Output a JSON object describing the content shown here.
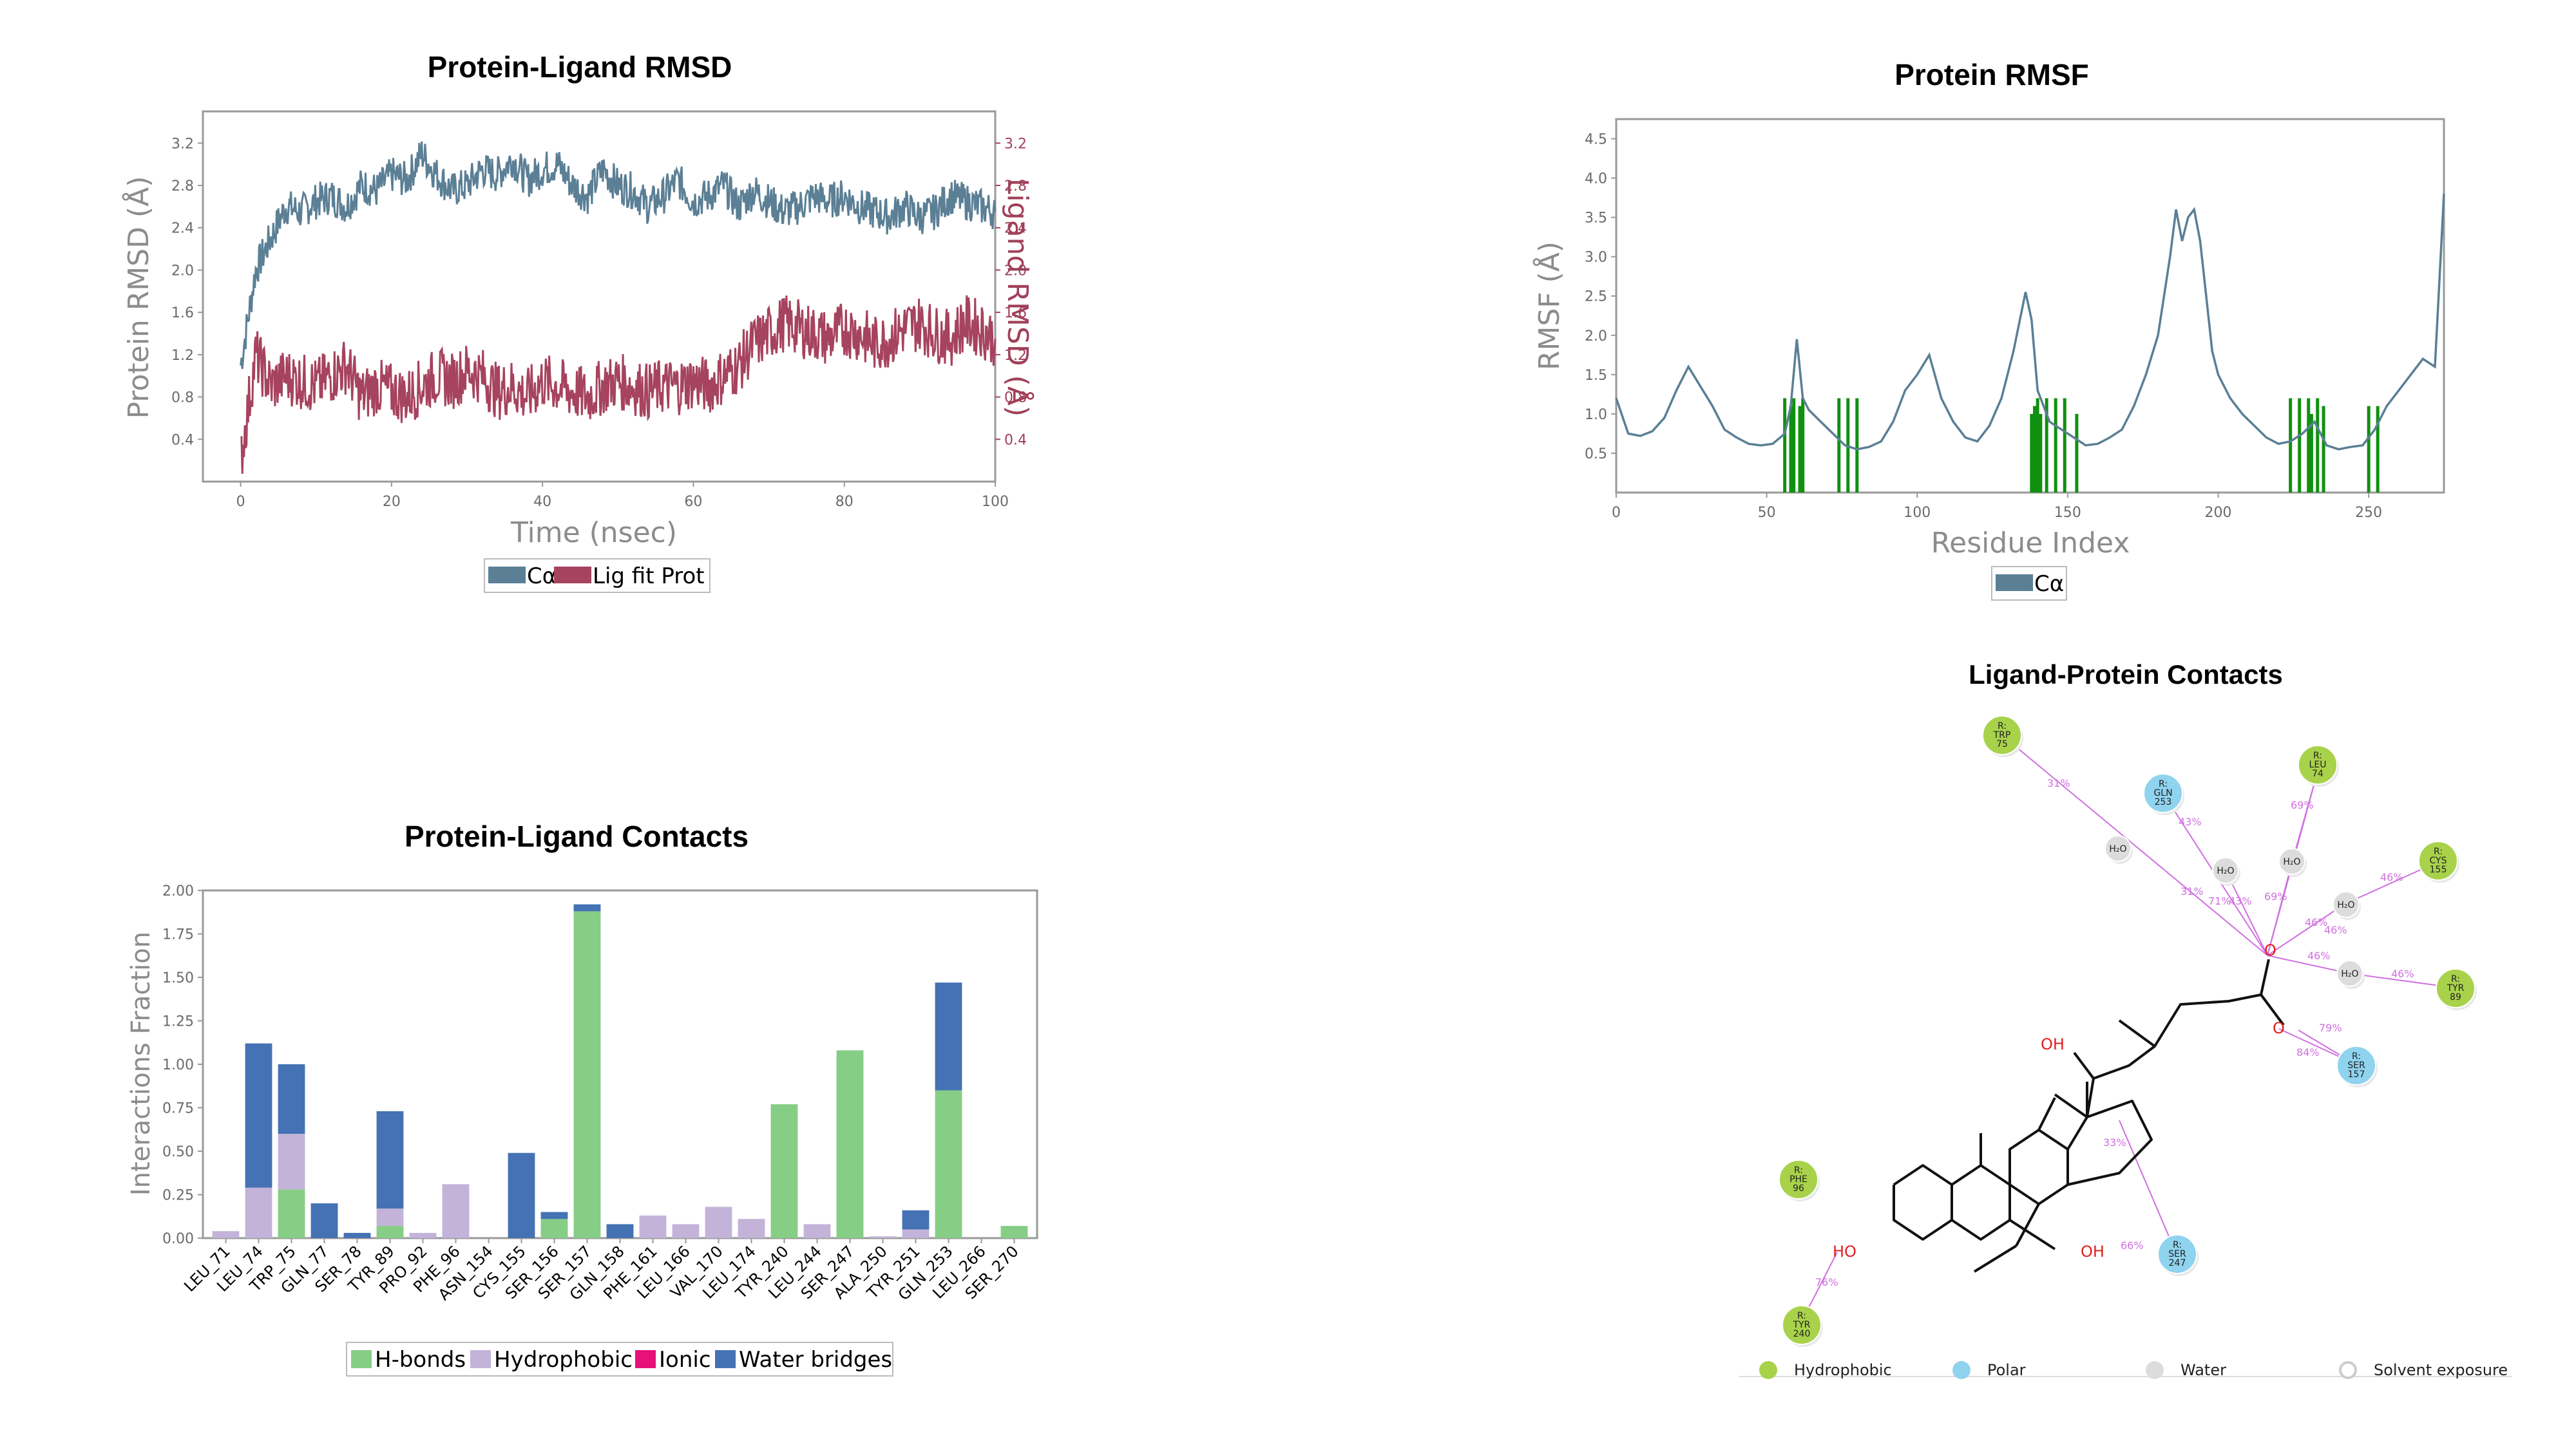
{
  "colors": {
    "protein": "#5b7f95",
    "ligand": "#a6435f",
    "hbond": "#86cd86",
    "hydrophobic": "#c3b3d9",
    "ionic": "#e8107a",
    "water": "#4472b4",
    "green": "#109010",
    "hydrophobic_node": "#a8d24a",
    "polar_node": "#8fd3ef",
    "water_node": "#dcdcdc",
    "contact_arrow": "#d070e0"
  },
  "chart_data": [
    {
      "type": "line",
      "title": "Protein-Ligand RMSD",
      "xlabel": "Time (nsec)",
      "ylabel": "Protein RMSD (Å)",
      "ylabel_right": "Ligand RMSD (Å)",
      "xlim": [
        -5,
        100
      ],
      "ylim": [
        0,
        3.5
      ],
      "x_ticks": [
        0,
        20,
        40,
        60,
        80,
        100
      ],
      "y_ticks": [
        0.4,
        0.8,
        1.2,
        1.6,
        2.0,
        2.4,
        2.8,
        3.2
      ],
      "legend": [
        "Cα",
        "Lig fit Prot"
      ],
      "series": [
        {
          "name": "Cα",
          "x": [
            0,
            2,
            4,
            6,
            8,
            10,
            12,
            14,
            16,
            18,
            20,
            22,
            24,
            26,
            28,
            30,
            32,
            34,
            36,
            38,
            40,
            42,
            44,
            46,
            48,
            50,
            52,
            54,
            56,
            58,
            60,
            62,
            64,
            66,
            68,
            70,
            72,
            74,
            76,
            78,
            80,
            82,
            84,
            86,
            88,
            90,
            92,
            94,
            96,
            98,
            100
          ],
          "values": [
            1.1,
            2.0,
            2.3,
            2.6,
            2.55,
            2.65,
            2.7,
            2.6,
            2.8,
            2.75,
            2.9,
            2.85,
            3.1,
            2.9,
            2.75,
            2.8,
            2.95,
            2.9,
            3.05,
            2.85,
            2.95,
            3.0,
            2.8,
            2.7,
            2.95,
            2.8,
            2.75,
            2.6,
            2.7,
            2.85,
            2.65,
            2.7,
            2.8,
            2.6,
            2.75,
            2.65,
            2.55,
            2.6,
            2.7,
            2.65,
            2.7,
            2.6,
            2.55,
            2.5,
            2.6,
            2.5,
            2.55,
            2.7,
            2.65,
            2.6,
            2.55
          ]
        },
        {
          "name": "Lig fit Prot",
          "x": [
            0,
            2,
            4,
            6,
            8,
            10,
            12,
            14,
            16,
            18,
            20,
            22,
            24,
            26,
            28,
            30,
            32,
            34,
            36,
            38,
            40,
            42,
            44,
            46,
            48,
            50,
            52,
            54,
            56,
            58,
            60,
            62,
            64,
            66,
            68,
            70,
            72,
            74,
            76,
            78,
            80,
            82,
            84,
            86,
            88,
            90,
            92,
            94,
            96,
            98,
            100
          ],
          "values": [
            0.2,
            1.2,
            0.9,
            1.0,
            0.95,
            0.9,
            1.0,
            1.1,
            0.8,
            0.9,
            0.85,
            0.8,
            0.9,
            1.0,
            0.95,
            1.05,
            1.0,
            0.85,
            0.9,
            0.8,
            0.95,
            0.9,
            0.85,
            0.8,
            0.9,
            0.95,
            0.9,
            0.85,
            0.9,
            0.9,
            0.95,
            0.9,
            1.0,
            1.1,
            1.3,
            1.4,
            1.5,
            1.45,
            1.4,
            1.35,
            1.45,
            1.4,
            1.3,
            1.35,
            1.45,
            1.5,
            1.4,
            1.35,
            1.5,
            1.45,
            1.35
          ]
        }
      ]
    },
    {
      "type": "line",
      "title": "Protein RMSF",
      "xlabel": "Residue Index",
      "ylabel": "RMSF (Å)",
      "xlim": [
        0,
        275
      ],
      "ylim": [
        0,
        4.75
      ],
      "x_ticks": [
        0,
        50,
        100,
        150,
        200,
        250
      ],
      "y_ticks": [
        0.5,
        1.0,
        1.5,
        2.0,
        2.5,
        3.0,
        3.5,
        4.0,
        4.5
      ],
      "legend": [
        "Cα"
      ],
      "series": [
        {
          "name": "Cα",
          "x": [
            0,
            4,
            8,
            12,
            16,
            20,
            24,
            28,
            32,
            36,
            40,
            44,
            48,
            52,
            56,
            58,
            60,
            62,
            64,
            68,
            72,
            76,
            80,
            84,
            88,
            92,
            96,
            100,
            104,
            108,
            112,
            116,
            120,
            124,
            128,
            132,
            136,
            138,
            140,
            142,
            144,
            148,
            152,
            156,
            160,
            164,
            168,
            172,
            176,
            180,
            184,
            186,
            188,
            190,
            192,
            194,
            196,
            198,
            200,
            204,
            208,
            212,
            216,
            220,
            224,
            228,
            232,
            236,
            240,
            244,
            248,
            252,
            256,
            260,
            264,
            268,
            272,
            275
          ],
          "values": [
            1.2,
            0.75,
            0.72,
            0.78,
            0.95,
            1.3,
            1.6,
            1.35,
            1.1,
            0.8,
            0.7,
            0.62,
            0.6,
            0.62,
            0.75,
            1.1,
            1.95,
            1.2,
            1.05,
            0.9,
            0.75,
            0.6,
            0.55,
            0.58,
            0.65,
            0.9,
            1.3,
            1.5,
            1.75,
            1.2,
            0.9,
            0.7,
            0.65,
            0.85,
            1.2,
            1.8,
            2.55,
            2.2,
            1.3,
            1.1,
            0.9,
            0.8,
            0.7,
            0.6,
            0.62,
            0.7,
            0.8,
            1.1,
            1.5,
            2.0,
            3.0,
            3.6,
            3.2,
            3.5,
            3.6,
            3.2,
            2.5,
            1.8,
            1.5,
            1.2,
            1.0,
            0.85,
            0.7,
            0.62,
            0.65,
            0.75,
            0.9,
            0.6,
            0.55,
            0.58,
            0.6,
            0.8,
            1.1,
            1.3,
            1.5,
            1.7,
            1.6,
            3.8
          ]
        }
      ],
      "ligand_contact_residues": [
        56,
        58,
        59,
        61,
        62,
        74,
        77,
        80,
        138,
        139,
        140,
        141,
        143,
        146,
        149,
        153,
        224,
        227,
        230,
        231,
        233,
        235,
        250,
        253
      ]
    },
    {
      "type": "bar",
      "title": "Protein-Ligand Contacts",
      "ylabel": "Interactions Fraction",
      "ylim": [
        0,
        2.0
      ],
      "y_ticks": [
        "0.00",
        "0.25",
        "0.50",
        "0.75",
        "1.00",
        "1.25",
        "1.50",
        "1.75",
        "2.00"
      ],
      "categories": [
        "LEU_71",
        "LEU_74",
        "TRP_75",
        "GLN_77",
        "SER_78",
        "TYR_89",
        "PRO_92",
        "PHE_96",
        "ASN_154",
        "CYS_155",
        "SER_156",
        "SER_157",
        "GLN_158",
        "PHE_161",
        "LEU_166",
        "VAL_170",
        "LEU_174",
        "TYR_240",
        "LEU_244",
        "SER_247",
        "ALA_250",
        "TYR_251",
        "GLN_253",
        "LEU_266",
        "SER_270"
      ],
      "series": [
        {
          "name": "H-bonds",
          "values": [
            0,
            0,
            0.28,
            0,
            0,
            0.07,
            0,
            0,
            0,
            0,
            0.11,
            1.88,
            0,
            0,
            0,
            0,
            0,
            0.77,
            0,
            1.08,
            0,
            0,
            0.85,
            0,
            0.07
          ]
        },
        {
          "name": "Hydrophobic",
          "values": [
            0.04,
            0.29,
            0.32,
            0,
            0,
            0.1,
            0.03,
            0.31,
            0,
            0,
            0,
            0,
            0,
            0.13,
            0.08,
            0.18,
            0.11,
            0,
            0.08,
            0,
            0.01,
            0.05,
            0,
            0,
            0
          ]
        },
        {
          "name": "Ionic",
          "values": [
            0,
            0,
            0,
            0,
            0,
            0,
            0,
            0,
            0,
            0,
            0,
            0,
            0,
            0,
            0,
            0,
            0,
            0,
            0,
            0,
            0,
            0,
            0,
            0,
            0
          ]
        },
        {
          "name": "Water bridges",
          "values": [
            0,
            0.83,
            0.4,
            0.2,
            0.03,
            0.56,
            0,
            0,
            0,
            0.49,
            0.04,
            0.04,
            0.08,
            0,
            0,
            0,
            0,
            0,
            0,
            0,
            0,
            0.11,
            0.62,
            0,
            0
          ]
        }
      ],
      "legend": [
        "H-bonds",
        "Hydrophobic",
        "Ionic",
        "Water bridges"
      ]
    }
  ],
  "contacts_diagram": {
    "title": "Ligand-Protein Contacts",
    "nodes": [
      {
        "id": "trp75",
        "label1": "R:",
        "label2": "TRP",
        "label3": "75",
        "kind": "hydrophobic"
      },
      {
        "id": "gln253",
        "label1": "R:",
        "label2": "GLN",
        "label3": "253",
        "kind": "polar"
      },
      {
        "id": "leu74",
        "label1": "R:",
        "label2": "LEU",
        "label3": "74",
        "kind": "hydrophobic"
      },
      {
        "id": "cys155",
        "label1": "R:",
        "label2": "CYS",
        "label3": "155",
        "kind": "hydrophobic"
      },
      {
        "id": "tyr89",
        "label1": "R:",
        "label2": "TYR",
        "label3": "89",
        "kind": "hydrophobic"
      },
      {
        "id": "ser157",
        "label1": "R:",
        "label2": "SER",
        "label3": "157",
        "kind": "polar"
      },
      {
        "id": "phe96",
        "label1": "R:",
        "label2": "PHE",
        "label3": "96",
        "kind": "hydrophobic"
      },
      {
        "id": "ser247",
        "label1": "R:",
        "label2": "SER",
        "label3": "247",
        "kind": "polar"
      },
      {
        "id": "tyr240",
        "label1": "R:",
        "label2": "TYR",
        "label3": "240",
        "kind": "hydrophobic"
      },
      {
        "id": "w1",
        "label1": "H₂O",
        "kind": "water"
      },
      {
        "id": "w2",
        "label1": "H₂O",
        "kind": "water"
      },
      {
        "id": "w3",
        "label1": "H₂O",
        "kind": "water"
      },
      {
        "id": "w4",
        "label1": "H₂O",
        "kind": "water"
      },
      {
        "id": "w5",
        "label1": "H₂O",
        "kind": "water"
      }
    ],
    "percentages": [
      "31%",
      "43%",
      "69%",
      "31%",
      "71%",
      "43%",
      "69%",
      "46%",
      "46%",
      "46%",
      "46%",
      "46%",
      "79%",
      "84%",
      "33%",
      "66%",
      "76%"
    ],
    "atoms": [
      "O",
      "O",
      "OH",
      "HO",
      "OH",
      "-"
    ],
    "legend": [
      "Hydrophobic",
      "Polar",
      "Water",
      "Solvent exposure"
    ]
  }
}
